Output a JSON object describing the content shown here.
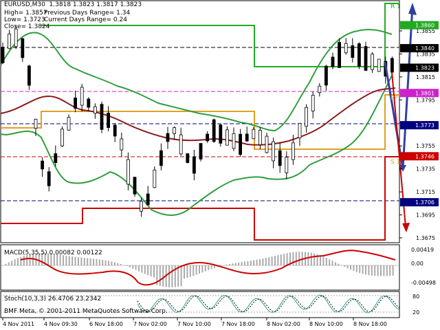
{
  "header": {
    "symbol_line": "EURUSD,M30  1.3818 1.3823 1.3817 1.3823",
    "high": "High= 1.3857",
    "low": "Low= 1.3723",
    "close": "Close= 1.3824",
    "prev_range": "Previous Days Range= 1.34",
    "curr_range": "Current Days Range= 0.24"
  },
  "price_scale": [
    "1.3855",
    "1.3835",
    "1.3815",
    "1.3795",
    "1.3775",
    "1.3755",
    "1.3735",
    "1.3715",
    "1.3695",
    "1.3675"
  ],
  "markers": [
    {
      "price": "1.3860",
      "color": "#22aa22",
      "textcolor": "#ffffff"
    },
    {
      "price": "1.3840",
      "color": "#000000",
      "textcolor": "#ffffff"
    },
    {
      "price": "1.3823",
      "color": "#000000",
      "textcolor": "#ffffff"
    },
    {
      "price": "1.3801",
      "color": "#cc22cc",
      "textcolor": "#ffffff"
    },
    {
      "price": "1.3773",
      "color": "#000080",
      "textcolor": "#ffffff"
    },
    {
      "price": "1.3746",
      "color": "#cc0000",
      "textcolor": "#ffffff"
    },
    {
      "price": "1.3706",
      "color": "#000080",
      "textcolor": "#ffffff"
    }
  ],
  "level_labels": {
    "r1": "R 1",
    "pp": "PP",
    "s1": "S 1"
  },
  "macd": {
    "label": "MACD(5,35,5) 0.00082 0.00122",
    "scale": [
      "0.00419",
      "0.00",
      "-0.00498"
    ]
  },
  "stoch": {
    "label": "Stoch(10,3,3) 26.4706 23.2342",
    "scale": [
      "80",
      "20"
    ]
  },
  "copyright": "BMF Meta, © 2001-2011 MetaQuotes Software Corp.",
  "time_axis": [
    "4 Nov 2011",
    "4 Nov 09:30",
    "6 Nov 18:00",
    "7 Nov 02:00",
    "7 Nov 10:00",
    "7 Nov 18:00",
    "8 Nov 02:00",
    "8 Nov 10:00",
    "8 Nov 18:00"
  ],
  "colors": {
    "up_band": "#2e9e3e",
    "ma": "#8b1a1a",
    "orange": "#e0a020",
    "red_level": "#cc0000",
    "green_level": "#22aa22",
    "arrow": "#3040a0"
  }
}
